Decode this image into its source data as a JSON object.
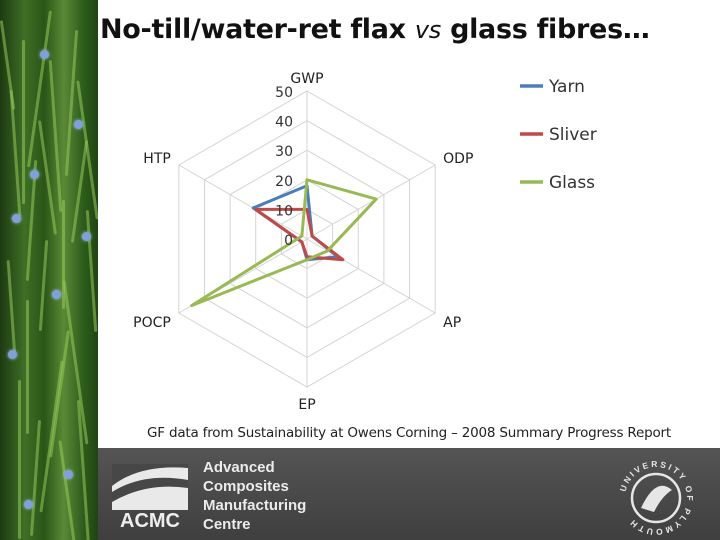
{
  "slide": {
    "title_part1": "No-till/water-ret flax ",
    "title_vs": "vs",
    "title_part2": " glass fibres…",
    "caption": "GF data from Sustainability at Owens Corning – 2008 Summary Progress Report"
  },
  "footer": {
    "logo_text": "ACMC",
    "org_lines": [
      "Advanced",
      "Composites",
      "Manufacturing",
      "Centre"
    ],
    "seal_text": "UNIVERSITY OF PLYMOUTH"
  },
  "chart_data": {
    "type": "radar",
    "axes": [
      "GWP",
      "ODP",
      "AP",
      "EP",
      "POCP",
      "HTP"
    ],
    "rmin": 0,
    "rmax": 50,
    "ticks": [
      0,
      10,
      20,
      30,
      40,
      50
    ],
    "series": [
      {
        "name": "Yarn",
        "color": "#4a7ebb",
        "values": [
          18,
          2,
          12,
          7,
          2,
          21
        ]
      },
      {
        "name": "Sliver",
        "color": "#be4b48",
        "values": [
          10,
          2,
          14,
          6,
          2,
          20
        ]
      },
      {
        "name": "Glass",
        "color": "#98b954",
        "values": [
          20,
          27,
          8,
          7,
          45,
          2
        ]
      }
    ],
    "legend_position": "right",
    "grid": true
  }
}
